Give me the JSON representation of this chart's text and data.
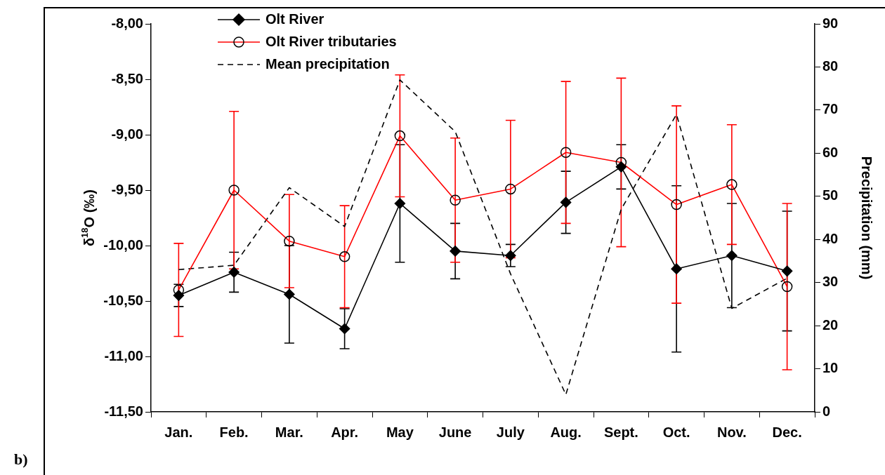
{
  "chart_data": {
    "type": "line",
    "categories": [
      "Jan.",
      "Feb.",
      "Mar.",
      "Apr.",
      "May",
      "June",
      "July",
      "Aug.",
      "Sept.",
      "Oct.",
      "Nov.",
      "Dec."
    ],
    "ylabel": "δ$^{18}$O (‰)",
    "y2label": "Precipitation (mm)",
    "ylim": [
      -11.5,
      -8
    ],
    "yticks": [
      {
        "value": -11.5,
        "label": "-11,50"
      },
      {
        "value": -11,
        "label": "-11,00"
      },
      {
        "value": -10.5,
        "label": "-10,50"
      },
      {
        "value": -10,
        "label": "-10,00"
      },
      {
        "value": -9.5,
        "label": "-9,50"
      },
      {
        "value": -9,
        "label": "-9,00"
      },
      {
        "value": -8.5,
        "label": "-8,50"
      },
      {
        "value": -8,
        "label": "-8,00"
      }
    ],
    "y2lim": [
      0,
      90
    ],
    "y2ticks": [
      0,
      10,
      20,
      30,
      40,
      50,
      60,
      70,
      80,
      90
    ],
    "grid": false,
    "legend": "top left",
    "annotations": [
      "b)"
    ],
    "series": [
      {
        "name": "Olt River",
        "color": "#000000",
        "marker": "diamond",
        "line_style": "solid",
        "values": [
          -10.45,
          -10.24,
          -10.44,
          -10.75,
          -9.62,
          -10.05,
          -10.09,
          -9.61,
          -9.29,
          -10.21,
          -10.09,
          -10.23
        ],
        "errors": [
          0.1,
          0.18,
          0.44,
          0.18,
          0.53,
          0.25,
          0.1,
          0.28,
          0.2,
          0.75,
          0.47,
          0.54
        ]
      },
      {
        "name": "Olt River tributaries",
        "color": "#ff0000",
        "marker": "circle",
        "line_style": "solid",
        "values": [
          -10.4,
          -9.5,
          -9.96,
          -10.1,
          -9.01,
          -9.59,
          -9.49,
          -9.16,
          -9.25,
          -9.63,
          -9.45,
          -10.37
        ],
        "errors": [
          0.42,
          0.71,
          0.42,
          0.46,
          0.55,
          0.56,
          0.62,
          0.64,
          0.76,
          0.89,
          0.54,
          0.75
        ]
      },
      {
        "name": "Mean precipitation",
        "color": "#000000",
        "axis": "y2",
        "marker": "none",
        "line_style": "dashed",
        "values": [
          33,
          34,
          52,
          43,
          77,
          65,
          32,
          4,
          47,
          69,
          24,
          31
        ]
      }
    ]
  }
}
